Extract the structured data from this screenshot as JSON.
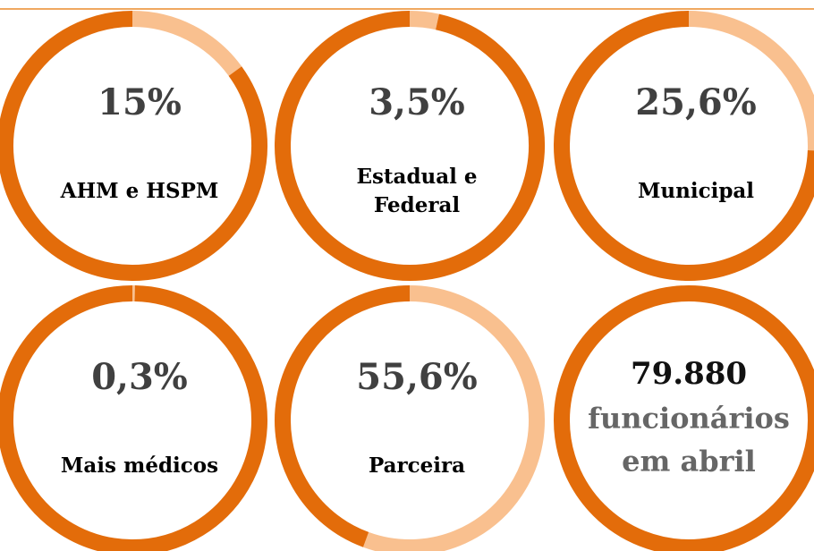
{
  "chart_data": [
    {
      "type": "donut",
      "label": [
        "AHM e HSPM"
      ],
      "values": [
        15,
        85
      ],
      "value_label": "15%",
      "colors": [
        "#f9c08f",
        "#e36c0a"
      ]
    },
    {
      "type": "donut",
      "label": [
        "Estadual e",
        "Federal"
      ],
      "values": [
        3.5,
        96.5
      ],
      "value_label": "3,5%",
      "colors": [
        "#f9c08f",
        "#e36c0a"
      ]
    },
    {
      "type": "donut",
      "label": [
        "Municipal"
      ],
      "values": [
        25.6,
        74.4
      ],
      "value_label": "25,6%",
      "colors": [
        "#f9c08f",
        "#e36c0a"
      ]
    },
    {
      "type": "donut",
      "label": [
        "Mais médicos"
      ],
      "values": [
        0.3,
        99.7
      ],
      "value_label": "0,3%",
      "colors": [
        "#f9c08f",
        "#e36c0a"
      ]
    },
    {
      "type": "donut",
      "label": [
        "Parceira"
      ],
      "values": [
        55.6,
        44.4
      ],
      "value_label": "55,6%",
      "colors": [
        "#f9c08f",
        "#e36c0a"
      ]
    }
  ],
  "summary": {
    "number": "79.880",
    "caption": [
      "funcionários",
      "em abril"
    ]
  }
}
